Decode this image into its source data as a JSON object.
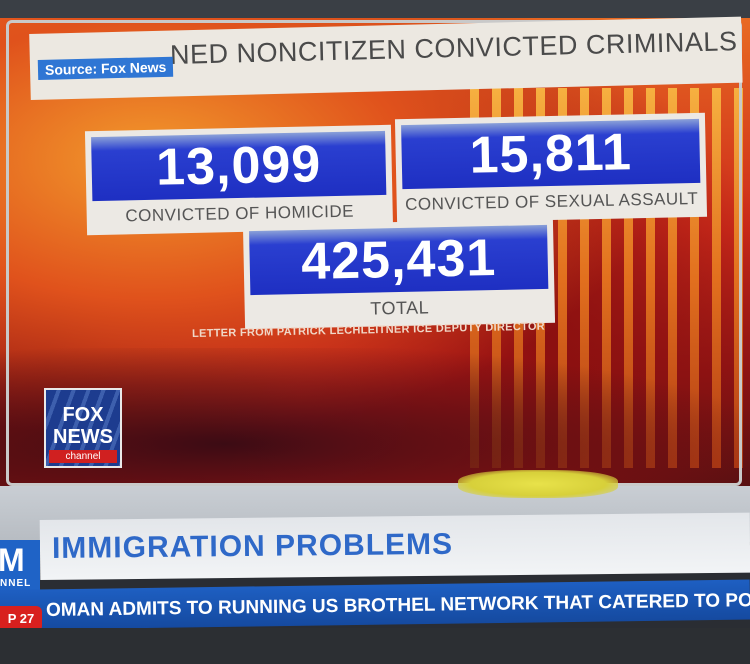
{
  "graphic": {
    "source": "Source: Fox News",
    "title": "NON-DETAINED NONCITIZEN CONVICTED CRIMINALS",
    "title_visible": "NED NONCITIZEN CONVICTED CRIMINALS",
    "stats": [
      {
        "value": "13,099",
        "label": "CONVICTED OF HOMICIDE"
      },
      {
        "value": "15,811",
        "label": "CONVICTED OF SEXUAL ASSAULT"
      },
      {
        "value": "425,431",
        "label": "TOTAL"
      }
    ],
    "note": "LETTER FROM PATRICK LECHLEITNER ICE DEPUTY DIRECTOR",
    "logo": {
      "line1": "FOX",
      "line2": "NEWS",
      "line3": "channel"
    }
  },
  "chyron": {
    "network_letter": "M",
    "network_sub": "NNEL",
    "headline": "IMMIGRATION PROBLEMS",
    "time": "P 27",
    "ticker": "OMAN ADMITS TO RUNNING US BROTHEL NETWORK THAT CATERED TO POLITICIA"
  },
  "colors": {
    "stat_blue": "#1e2fc2",
    "chyron_blue": "#2f69c8",
    "ticker_blue": "#1e5fc2",
    "alert_red": "#d8201e"
  }
}
